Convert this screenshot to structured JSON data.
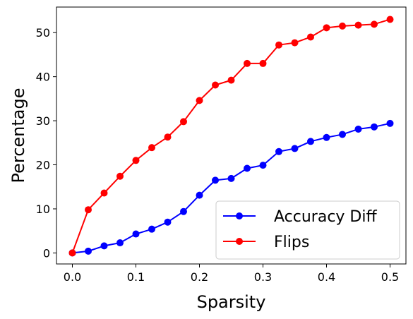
{
  "chart_data": {
    "type": "line",
    "xlabel": "Sparsity",
    "ylabel": "Percentage",
    "x": [
      0,
      0.025,
      0.05,
      0.075,
      0.1,
      0.125,
      0.15,
      0.175,
      0.2,
      0.225,
      0.25,
      0.275,
      0.3,
      0.325,
      0.35,
      0.375,
      0.4,
      0.425,
      0.45,
      0.475,
      0.5
    ],
    "xlim": [
      -0.025,
      0.525
    ],
    "ylim": [
      -2.5,
      55.8
    ],
    "xticks": [
      0.0,
      0.1,
      0.2,
      0.3,
      0.4,
      0.5
    ],
    "xtick_labels": [
      "0.0",
      "0.1",
      "0.2",
      "0.3",
      "0.4",
      "0.5"
    ],
    "yticks": [
      0,
      10,
      20,
      30,
      40,
      50
    ],
    "ytick_labels": [
      "0",
      "10",
      "20",
      "30",
      "40",
      "50"
    ],
    "grid": false,
    "legend_position": "bottom-right",
    "series": [
      {
        "name": "Accuracy Diff",
        "color": "#0000ff",
        "values": [
          0.0,
          0.4,
          1.6,
          2.3,
          4.3,
          5.4,
          7.0,
          9.4,
          13.1,
          16.5,
          16.9,
          19.2,
          19.9,
          23.0,
          23.7,
          25.3,
          26.2,
          26.9,
          28.1,
          28.6,
          29.4
        ]
      },
      {
        "name": "Flips",
        "color": "#ff0000",
        "values": [
          0.0,
          9.8,
          13.6,
          17.4,
          21.0,
          23.9,
          26.3,
          29.8,
          34.6,
          38.1,
          39.2,
          43.0,
          43.0,
          47.2,
          47.7,
          49.0,
          51.1,
          51.5,
          51.7,
          51.9,
          53.0
        ]
      }
    ]
  }
}
